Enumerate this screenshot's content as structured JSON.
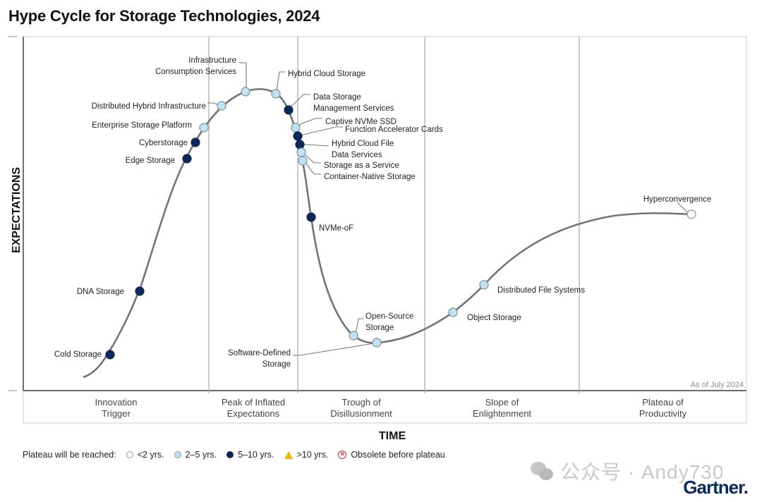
{
  "chart_data": {
    "type": "scatter",
    "title": "Hype Cycle for Storage Technologies, 2024",
    "xlabel": "TIME",
    "ylabel": "EXPECTATIONS",
    "annotation": "As of July 2024",
    "grid": false,
    "legend_position": "bottom-left",
    "phases": [
      "Innovation\nTrigger",
      "Peak of Inflated\nExpectations",
      "Trough of\nDisillusionment",
      "Slope of\nEnlightenment",
      "Plateau of\nProductivity"
    ],
    "legend": {
      "title": "Plateau will be reached:",
      "entries": [
        {
          "key": "lt2",
          "label": "<2 yrs.",
          "color": "#ffffff"
        },
        {
          "key": "2to5",
          "label": "2–5 yrs.",
          "color": "#bfe3f2"
        },
        {
          "key": "5to10",
          "label": "5–10 yrs.",
          "color": "#0b2859"
        },
        {
          "key": "gt10",
          "label": ">10 yrs.",
          "color": "#f2b600"
        },
        {
          "key": "obsolete",
          "label": "Obsolete before plateau",
          "color": "#d61f26"
        }
      ]
    },
    "points": [
      {
        "name": "Cold Storage",
        "phase": "Innovation Trigger",
        "plateau": "5to10"
      },
      {
        "name": "DNA Storage",
        "phase": "Innovation Trigger",
        "plateau": "5to10"
      },
      {
        "name": "Edge Storage",
        "phase": "Innovation Trigger",
        "plateau": "5to10"
      },
      {
        "name": "Cyberstorage",
        "phase": "Innovation Trigger",
        "plateau": "5to10"
      },
      {
        "name": "Enterprise Storage Platform",
        "phase": "Innovation Trigger",
        "plateau": "2to5"
      },
      {
        "name": "Distributed Hybrid Infrastructure",
        "phase": "Peak of Inflated Expectations",
        "plateau": "2to5"
      },
      {
        "name": "Infrastructure\nConsumption Services",
        "phase": "Peak of Inflated Expectations",
        "plateau": "2to5"
      },
      {
        "name": "Hybrid Cloud Storage",
        "phase": "Peak of Inflated Expectations",
        "plateau": "2to5"
      },
      {
        "name": "Data Storage\nManagement Services",
        "phase": "Peak of Inflated Expectations",
        "plateau": "5to10"
      },
      {
        "name": "Captive NVMe SSD",
        "phase": "Trough of Disillusionment",
        "plateau": "2to5"
      },
      {
        "name": "Function Accelerator Cards",
        "phase": "Trough of Disillusionment",
        "plateau": "5to10"
      },
      {
        "name": "Hybrid Cloud File\nData Services",
        "phase": "Trough of Disillusionment",
        "plateau": "5to10"
      },
      {
        "name": "Storage as a Service",
        "phase": "Trough of Disillusionment",
        "plateau": "2to5"
      },
      {
        "name": "Container-Native Storage",
        "phase": "Trough of Disillusionment",
        "plateau": "2to5"
      },
      {
        "name": "NVMe-oF",
        "phase": "Trough of Disillusionment",
        "plateau": "5to10"
      },
      {
        "name": "Open-Source\nStorage",
        "phase": "Trough of Disillusionment",
        "plateau": "2to5"
      },
      {
        "name": "Software-Defined\nStorage",
        "phase": "Trough of Disillusionment",
        "plateau": "2to5"
      },
      {
        "name": "Object Storage",
        "phase": "Slope of Enlightenment",
        "plateau": "2to5"
      },
      {
        "name": "Distributed File Systems",
        "phase": "Slope of Enlightenment",
        "plateau": "2to5"
      },
      {
        "name": "Hyperconvergence",
        "phase": "Slope of Enlightenment",
        "plateau": "lt2"
      }
    ]
  },
  "footer": {
    "watermark": "公众号 · Andy730",
    "brand": "Gartner."
  }
}
